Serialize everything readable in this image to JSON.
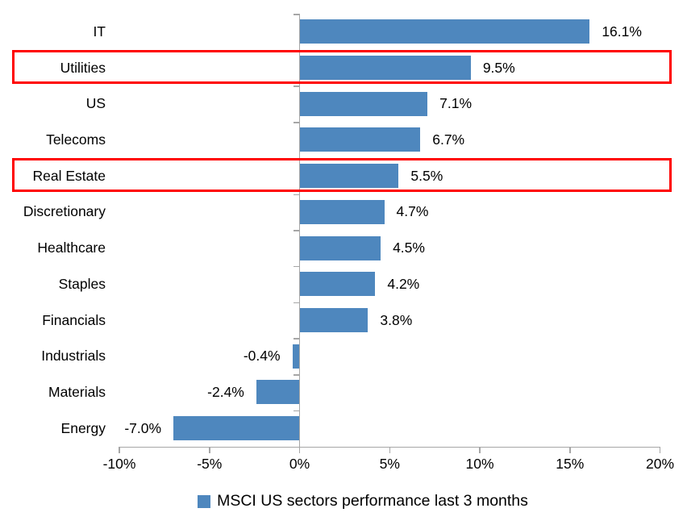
{
  "chart_data": {
    "type": "bar",
    "orientation": "horizontal",
    "title": "",
    "legend": "MSCI US sectors performance last 3 months",
    "legend_position": "bottom",
    "bar_color": "#4E87BE",
    "highlight_box_color": "#FF0000",
    "axis_color": "#A6A6A6",
    "text_color": "#000000",
    "xlim": [
      -10,
      20
    ],
    "x_tick_values": [
      -10,
      -5,
      0,
      5,
      10,
      15,
      20
    ],
    "x_tick_labels": [
      "-10%",
      "-5%",
      "0%",
      "5%",
      "10%",
      "15%",
      "20%"
    ],
    "grid": false,
    "categories": [
      "IT",
      "Utilities",
      "US",
      "Telecoms",
      "Real Estate",
      "Discretionary",
      "Healthcare",
      "Staples",
      "Financials",
      "Industrials",
      "Materials",
      "Energy"
    ],
    "values": [
      16.1,
      9.5,
      7.1,
      6.7,
      5.5,
      4.7,
      4.5,
      4.2,
      3.8,
      -0.4,
      -2.4,
      -7.0
    ],
    "value_labels": [
      "16.1%",
      "9.5%",
      "7.1%",
      "6.7%",
      "5.5%",
      "4.7%",
      "4.5%",
      "4.2%",
      "3.8%",
      "-0.4%",
      "-2.4%",
      "-7.0%"
    ],
    "highlighted_categories": [
      "Utilities",
      "Real Estate"
    ]
  }
}
